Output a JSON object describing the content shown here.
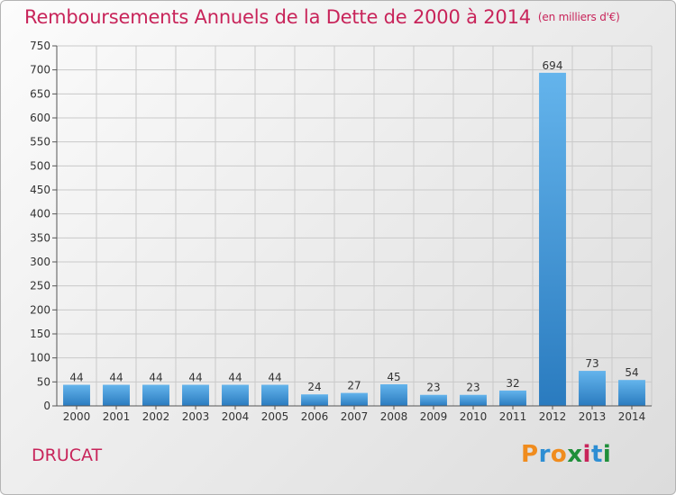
{
  "title": "Remboursements Annuels de la Dette de 2000 à 2014",
  "unit_label": "(en milliers d'€)",
  "town": "DRUCAT",
  "logo": {
    "text": "Proxiti",
    "colors": [
      "#f08c1e",
      "#2d8ed3",
      "#f08c1e",
      "#1f8f3a",
      "#c8245a",
      "#2d8ed3",
      "#1f8f3a"
    ]
  },
  "colors": {
    "bar_light": "#64b4ec",
    "bar_dark": "#2a7bbf",
    "title": "#c8245a",
    "grid": "#c9c9c9",
    "text": "#333333"
  },
  "chart_data": {
    "type": "bar",
    "title": "Remboursements Annuels de la Dette de 2000 à 2014",
    "xlabel": "",
    "ylabel": "en milliers d'€",
    "categories": [
      "2000",
      "2001",
      "2002",
      "2003",
      "2004",
      "2005",
      "2006",
      "2007",
      "2008",
      "2009",
      "2010",
      "2011",
      "2012",
      "2013",
      "2014"
    ],
    "values": [
      44,
      44,
      44,
      44,
      44,
      44,
      24,
      27,
      45,
      23,
      23,
      32,
      694,
      73,
      54
    ],
    "ylim": [
      0,
      750
    ],
    "yticks": [
      0,
      50,
      100,
      150,
      200,
      250,
      300,
      350,
      400,
      450,
      500,
      550,
      600,
      650,
      700,
      750
    ],
    "grid": true,
    "legend": "none"
  }
}
